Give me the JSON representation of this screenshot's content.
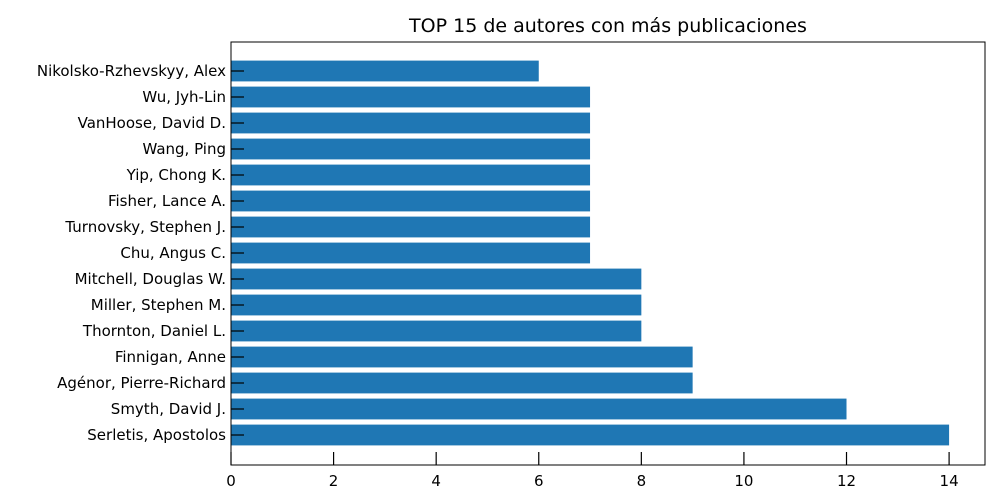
{
  "chart_data": {
    "type": "bar",
    "orientation": "horizontal",
    "title": "TOP 15 de autores con más publicaciones",
    "xlabel": "",
    "ylabel": "",
    "color": "#1f77b4",
    "xlim": [
      0,
      14.7
    ],
    "xticks": [
      0,
      2,
      4,
      6,
      8,
      10,
      12,
      14
    ],
    "grid": false,
    "categories": [
      "Serletis, Apostolos",
      "Smyth, David J.",
      "Agénor, Pierre-Richard",
      "Finnigan, Anne",
      "Thornton, Daniel L.",
      "Miller, Stephen M.",
      "Mitchell, Douglas W.",
      "Chu, Angus C.",
      "Turnovsky, Stephen J.",
      "Fisher, Lance A.",
      "Yip, Chong K.",
      "Wang, Ping",
      "VanHoose, David D.",
      "Wu, Jyh-Lin",
      "Nikolsko-Rzhevskyy, Alex"
    ],
    "values": [
      14,
      12,
      9,
      9,
      8,
      8,
      8,
      7,
      7,
      7,
      7,
      7,
      7,
      7,
      6
    ]
  }
}
